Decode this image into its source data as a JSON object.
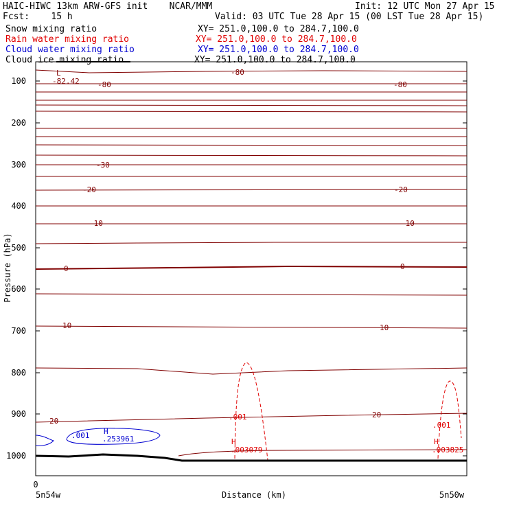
{
  "header": {
    "left_line1": "HAIC-HIWC 13km ARW-GFS init    NCAR/MMM",
    "right_line1": "Init: 12 UTC Mon 27 Apr 15",
    "left_line2": "Fcst:    15 h",
    "right_line2": "Valid: 03 UTC Tue 28 Apr 15 (00 LST Tue 28 Apr 15)"
  },
  "legend": [
    {
      "label": "Snow mixing ratio",
      "xy": "XY= 251.0,100.0 to 284.7,100.0",
      "color": "#000000"
    },
    {
      "label": "Rain water mixing ratio",
      "xy": "XY= 251.0,100.0 to 284.7,100.0",
      "color": "#e00000"
    },
    {
      "label": "Cloud water mixing ratio",
      "xy": "XY= 251.0,100.0 to 284.7,100.0",
      "color": "#0000d0"
    },
    {
      "label": "Cloud ice mixing ratio",
      "xy": "XY= 251.0,100.0 to 284.7,100.0",
      "color": "#000000"
    }
  ],
  "chart_data": {
    "type": "line",
    "xlabel": "Distance (km)",
    "ylabel": "Pressure (hPa)",
    "y_ticks": [
      100,
      200,
      300,
      400,
      500,
      600,
      700,
      800,
      900,
      1000
    ],
    "x_tick_label": "0",
    "x_endpoint_labels": [
      "5n54w",
      "5n50w"
    ],
    "temperature_labels": [
      "-80",
      "-80",
      "-80",
      "-30",
      "-20",
      "-20",
      "-10",
      "-10",
      "0",
      "0",
      "10",
      "10",
      "20",
      "20"
    ],
    "extrema": [
      {
        "type": "L",
        "value": "-82.42"
      },
      {
        "type": "H",
        "value": ".253961"
      },
      {
        "type": "H",
        "value": ".003079"
      },
      {
        "type": "H",
        "value": ".003825"
      }
    ],
    "contour_labels": [
      ".001",
      ".001",
      ".001"
    ],
    "colors": {
      "temperature": "#800000",
      "rain": "#e00000",
      "cloud_water": "#0000d0",
      "terrain": "#000000"
    }
  }
}
